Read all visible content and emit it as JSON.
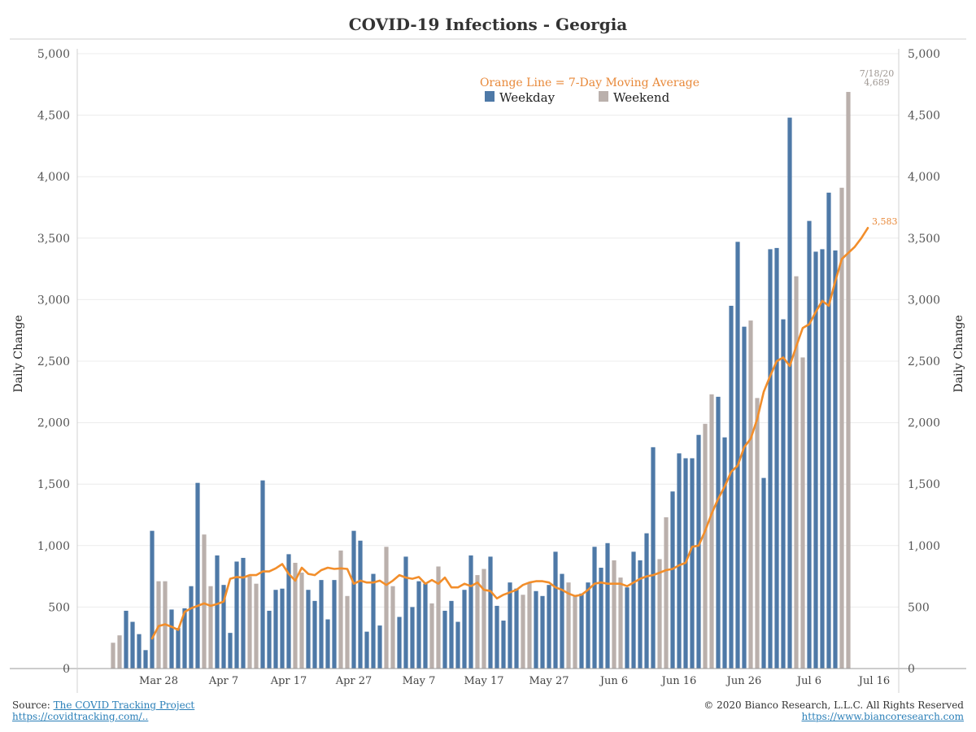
{
  "chart_data": {
    "type": "bar",
    "title": "COVID-19 Infections - Georgia",
    "ylabel_left": "Daily Change",
    "ylabel_right": "Daily Change",
    "ylim": [
      0,
      5000
    ],
    "yticks": [
      0,
      500,
      1000,
      1500,
      2000,
      2500,
      3000,
      3500,
      4000,
      4500,
      5000
    ],
    "ytick_labels": [
      "0",
      "500",
      "1,000",
      "1,500",
      "2,000",
      "2,500",
      "3,000",
      "3,500",
      "4,000",
      "4,500",
      "5,000"
    ],
    "start_date": "2020-03-21",
    "end_date": "2020-07-18",
    "xtick_labels": [
      "Mar 28",
      "Apr 7",
      "Apr 17",
      "Apr 27",
      "May 7",
      "May 17",
      "May 27",
      "Jun 6",
      "Jun 16",
      "Jun 26",
      "Jul 6",
      "Jul 16"
    ],
    "grid": true,
    "legend_placement": "top-right",
    "legend": {
      "title": "Orange Line = 7-Day Moving Average",
      "weekday": "Weekday",
      "weekend": "Weekend"
    },
    "colors": {
      "weekday": "#4e79a7",
      "weekend": "#bab0ac",
      "moving_average": "#f28e2b"
    },
    "annotations": {
      "last_bar_date": "7/18/20",
      "last_bar_value": "4,689",
      "last_ma_value": "3,583"
    },
    "series": [
      {
        "name": "Weekday",
        "note": "bars colored blue when date falls Monday–Friday, grey on weekends",
        "values": [
          210,
          270,
          470,
          380,
          280,
          150,
          1120,
          710,
          710,
          480,
          330,
          490,
          670,
          1510,
          1090,
          670,
          920,
          680,
          290,
          870,
          900,
          750,
          690,
          1530,
          470,
          640,
          650,
          930,
          860,
          780,
          640,
          550,
          720,
          400,
          720,
          960,
          590,
          1120,
          1040,
          300,
          770,
          350,
          990,
          670,
          420,
          910,
          500,
          710,
          690,
          530,
          830,
          470,
          550,
          380,
          640,
          920,
          760,
          810,
          910,
          510,
          390,
          700,
          650,
          600,
          700,
          630,
          590,
          680,
          950,
          770,
          700,
          590,
          610,
          700,
          990,
          820,
          1020,
          880,
          740,
          660,
          950,
          880,
          1100,
          1800,
          890,
          1230,
          1440,
          1750,
          1710,
          1710,
          1900,
          1990,
          2230,
          2210,
          1880,
          2950,
          3470,
          2780,
          2830,
          2200,
          1550,
          3410,
          3420,
          2840,
          4480,
          3190,
          2530,
          3640,
          3390,
          3410,
          3870,
          3400,
          3910,
          4689
        ]
      }
    ],
    "moving_average": {
      "name": "7-Day Moving Average",
      "start_index": 6,
      "values": [
        245,
        345,
        360,
        340,
        315,
        460,
        490,
        510,
        530,
        510,
        525,
        545,
        730,
        745,
        740,
        760,
        760,
        790,
        790,
        815,
        850,
        770,
        715,
        820,
        770,
        760,
        800,
        820,
        810,
        815,
        810,
        690,
        715,
        700,
        700,
        715,
        680,
        715,
        760,
        740,
        730,
        745,
        690,
        720,
        690,
        740,
        660,
        660,
        690,
        670,
        700,
        640,
        630,
        570,
        600,
        620,
        640,
        680,
        700,
        710,
        710,
        700,
        660,
        640,
        610,
        590,
        600,
        640,
        690,
        700,
        690,
        690,
        690,
        670,
        700,
        730,
        750,
        760,
        780,
        800,
        810,
        840,
        860,
        990,
        1000,
        1120,
        1260,
        1380,
        1480,
        1600,
        1650,
        1800,
        1870,
        2030,
        2250,
        2380,
        2500,
        2530,
        2460,
        2620,
        2770,
        2800,
        2900,
        2990,
        2950,
        3150,
        3330,
        3380,
        3430,
        3500,
        3583
      ]
    }
  },
  "footer": {
    "source_prefix": "Source: ",
    "source_link": "The COVID Tracking Project",
    "source_url": "https://covidtracking.com/..",
    "copyright": "© 2020 Bianco Research, L.L.C. All Rights Reserved",
    "site_url": "https://www.biancoresearch.com"
  }
}
